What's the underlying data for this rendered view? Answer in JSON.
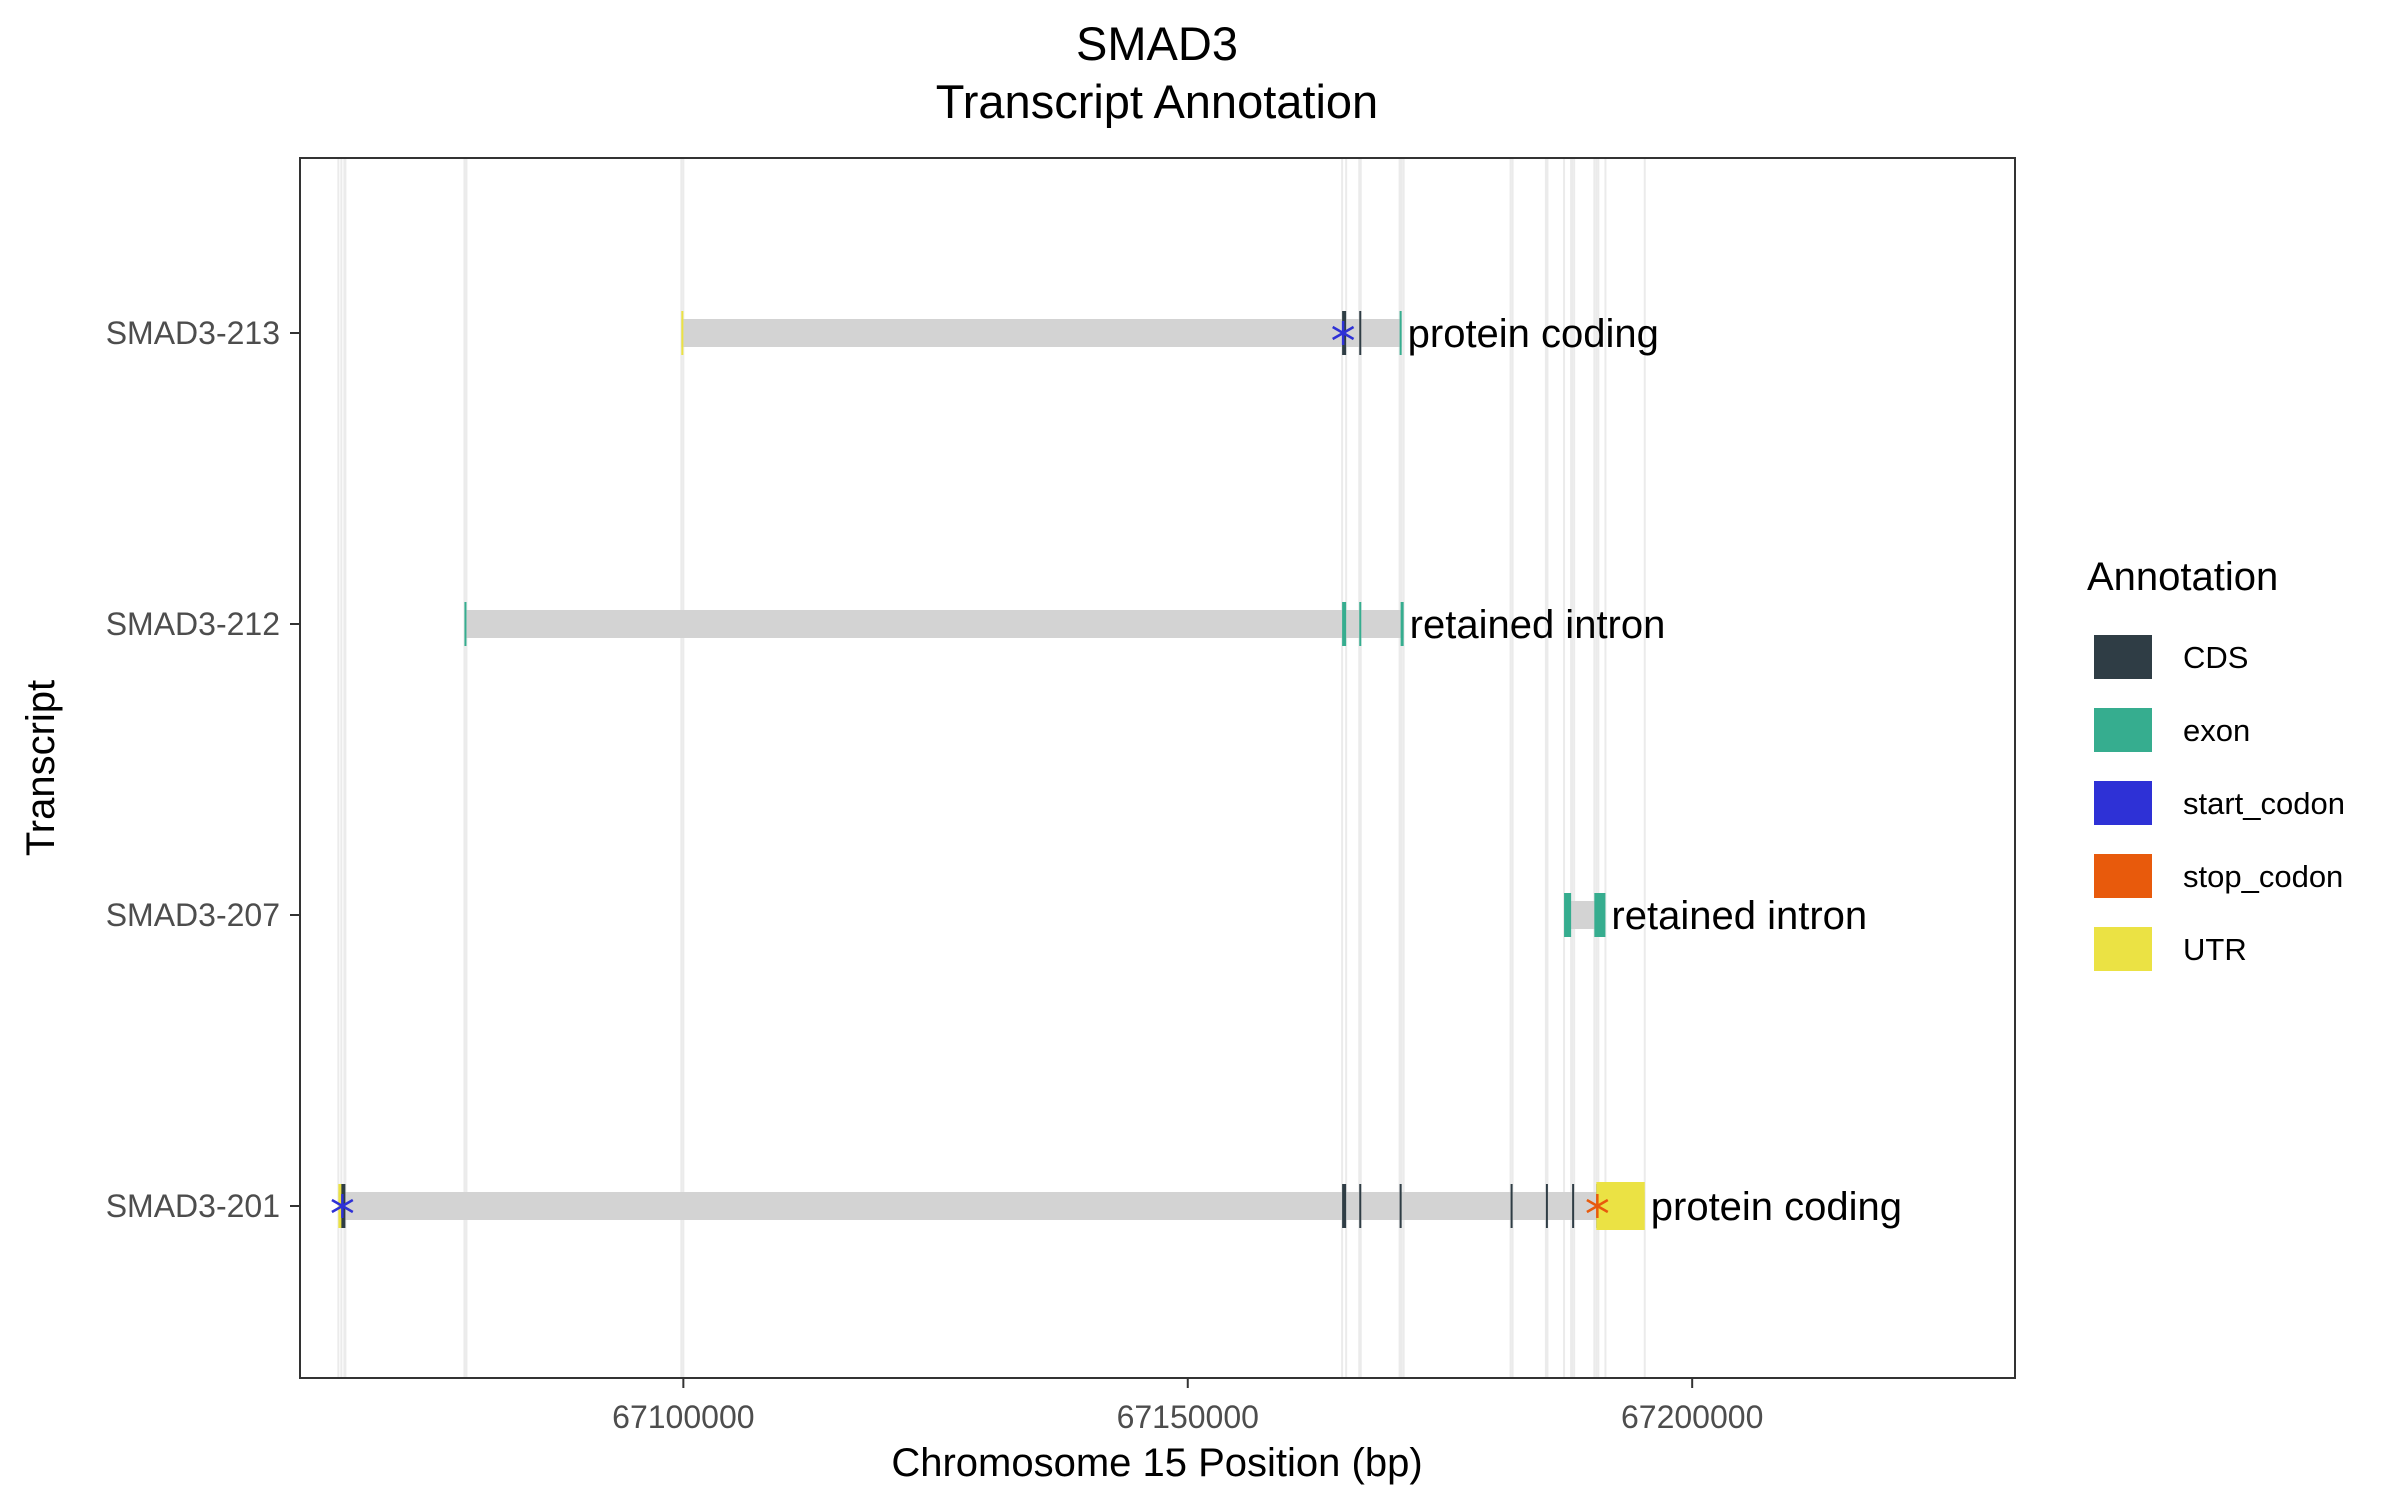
{
  "chart_data": {
    "type": "transcript-annotation",
    "title": "SMAD3",
    "subtitle": "Transcript Annotation",
    "xlabel": "Chromosome 15 Position (bp)",
    "ylabel": "Transcript",
    "xlim": [
      67062000,
      67232000
    ],
    "x_ticks": [
      "67100000",
      "67150000",
      "67200000"
    ],
    "x_tick_values": [
      67100000,
      67150000,
      67200000
    ],
    "grid": true,
    "legend_position": "right",
    "colors": {
      "CDS": "#2f3d45",
      "exon": "#36ad8f",
      "start_codon": "#2e31d6",
      "stop_codon": "#e85a0c",
      "UTR": "#ebe244",
      "intron": "#d3d3d3",
      "gridline": "#ebebeb"
    },
    "legend": {
      "title": "Annotation",
      "items": [
        {
          "key": "CDS",
          "label": "CDS"
        },
        {
          "key": "exon",
          "label": "exon"
        },
        {
          "key": "start_codon",
          "label": "start_codon"
        },
        {
          "key": "stop_codon",
          "label": "stop_codon"
        },
        {
          "key": "UTR",
          "label": "UTR"
        }
      ]
    },
    "transcripts": [
      {
        "name": "SMAD3-213",
        "biotype": "protein coding",
        "start": 67099800,
        "end": 67171200,
        "features": [
          {
            "type": "UTR",
            "start": 67099800,
            "end": 67100000
          },
          {
            "type": "CDS",
            "start": 67165300,
            "end": 67165700
          },
          {
            "type": "CDS",
            "start": 67167000,
            "end": 67167150
          },
          {
            "type": "exon",
            "start": 67171000,
            "end": 67171200
          }
        ],
        "codons": [
          {
            "type": "start_codon",
            "position": 67165400
          }
        ]
      },
      {
        "name": "SMAD3-212",
        "biotype": "retained intron",
        "start": 67078300,
        "end": 67171400,
        "features": [
          {
            "type": "exon",
            "start": 67078300,
            "end": 67078500
          },
          {
            "type": "exon",
            "start": 67165300,
            "end": 67165700
          },
          {
            "type": "exon",
            "start": 67167000,
            "end": 67167150
          },
          {
            "type": "exon",
            "start": 67171100,
            "end": 67171400
          }
        ],
        "codons": []
      },
      {
        "name": "SMAD3-207",
        "biotype": "retained intron",
        "start": 67187300,
        "end": 67191400,
        "features": [
          {
            "type": "exon",
            "start": 67187300,
            "end": 67188000
          },
          {
            "type": "exon",
            "start": 67190300,
            "end": 67191400
          }
        ],
        "codons": []
      },
      {
        "name": "SMAD3-201",
        "biotype": "protein coding",
        "start": 67065800,
        "end": 67195300,
        "features": [
          {
            "type": "UTR",
            "start": 67065800,
            "end": 67066400
          },
          {
            "type": "CDS",
            "start": 67066100,
            "end": 67066500
          },
          {
            "type": "CDS",
            "start": 67165300,
            "end": 67165700
          },
          {
            "type": "CDS",
            "start": 67167000,
            "end": 67167150
          },
          {
            "type": "CDS",
            "start": 67171000,
            "end": 67171200
          },
          {
            "type": "CDS",
            "start": 67182000,
            "end": 67182200
          },
          {
            "type": "CDS",
            "start": 67185500,
            "end": 67185650
          },
          {
            "type": "CDS",
            "start": 67188100,
            "end": 67188300
          },
          {
            "type": "CDS",
            "start": 67190500,
            "end": 67190700
          },
          {
            "type": "UTR",
            "start": 67190500,
            "end": 67195300
          }
        ],
        "codons": [
          {
            "type": "start_codon",
            "position": 67066200
          },
          {
            "type": "stop_codon",
            "position": 67190600
          }
        ]
      }
    ]
  }
}
